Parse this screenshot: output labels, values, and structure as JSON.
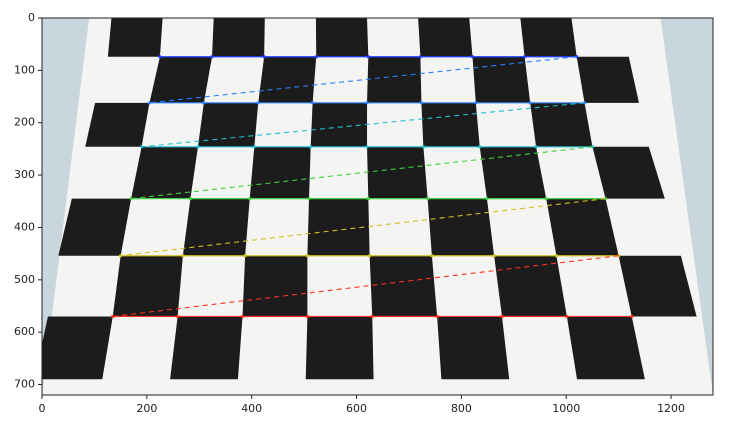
{
  "chart_data": {
    "type": "image",
    "xlim": [
      0,
      1280
    ],
    "ylim": [
      720,
      0
    ],
    "xticks": [
      0,
      200,
      400,
      600,
      800,
      1000,
      1200
    ],
    "yticks": [
      0,
      100,
      200,
      300,
      400,
      500,
      600,
      700
    ]
  }
}
